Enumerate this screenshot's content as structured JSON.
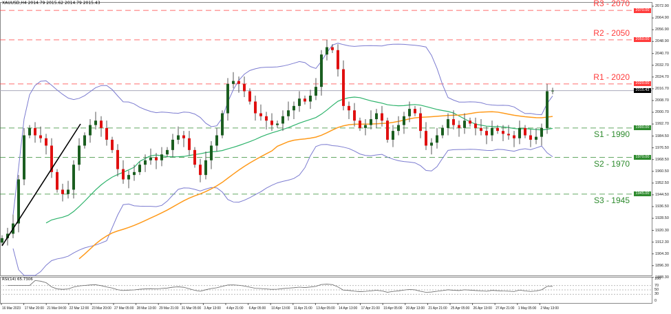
{
  "header": {
    "title": "XAUUSD,H4  2014.79 2015.62 2014.79 2015.43"
  },
  "levels": [
    {
      "label": "R3 - 2070",
      "price": 2070,
      "tag": "2070.00",
      "color": "#ff3b3b"
    },
    {
      "label": "R2 - 2050",
      "price": 2050,
      "tag": "2050.00",
      "color": "#ff3b3b"
    },
    {
      "label": "R1 - 2020",
      "price": 2020,
      "tag": "2020.00",
      "color": "#ff3b3b"
    },
    {
      "label": "S1 - 1990",
      "price": 1990,
      "tag": "1990.00",
      "color": "#2e8b2e"
    },
    {
      "label": "S2 - 1970",
      "price": 1970,
      "tag": "1970.00",
      "color": "#2e8b2e"
    },
    {
      "label": "S3 - 1945",
      "price": 1945,
      "tag": "1945.00",
      "color": "#2e8b2e"
    }
  ],
  "current_price": {
    "value": 2015.43,
    "tag": "2015.43"
  },
  "y_ticks": [
    "2072.90",
    "2064.90",
    "2056.90",
    "2048.90",
    "2040.70",
    "2032.70",
    "2024.70",
    "2016.70",
    "2008.70",
    "2000.70",
    "1992.70",
    "1984.50",
    "1976.50",
    "1968.50",
    "1960.50",
    "1952.50",
    "1944.50",
    "1936.50",
    "1928.50",
    "1920.30",
    "1912.30",
    "1904.30",
    "1896.30",
    "1888.30"
  ],
  "x_ticks": [
    "16 Mar 2023",
    "17 Mar 20:00",
    "21 Mar 04:00",
    "22 Mar 12:00",
    "23 Mar 20:00",
    "27 Mar 05:00",
    "28 Mar 13:00",
    "29 Mar 21:00",
    "31 Mar 05:00",
    "3 Apr 13:00",
    "4 Apr 21:00",
    "6 Apr 05:00",
    "10 Apr 13:00",
    "11 Apr 21:00",
    "13 Apr 05:00",
    "14 Apr 13:00",
    "17 Apr 21:00",
    "19 Apr 05:00",
    "20 Apr 13:00",
    "21 Apr 21:00",
    "25 Apr 05:00",
    "26 Apr 13:00",
    "27 Apr 21:00",
    "1 May 05:00",
    "2 May 13:00"
  ],
  "rsi": {
    "title": "RSI(14) 65.7306",
    "ticks": [
      "100",
      "70",
      "50",
      "30",
      "0"
    ]
  },
  "colors": {
    "bull": "#1b5e20",
    "bear": "#e01010",
    "bands": "#7b7bd0",
    "ma_fast": "#2db36b",
    "ma_slow": "#ff9a1a",
    "trendline": "#000000"
  },
  "chart_data": {
    "type": "candlestick",
    "symbol": "XAUUSD",
    "timeframe": "H4",
    "ylim": [
      1888.3,
      2072.9
    ],
    "closes": [
      1915,
      1918,
      1925,
      1955,
      1985,
      1990,
      1985,
      1983,
      1978,
      1960,
      1948,
      1945,
      1948,
      1965,
      1978,
      1985,
      1992,
      1995,
      1990,
      1982,
      1975,
      1962,
      1955,
      1958,
      1960,
      1965,
      1968,
      1970,
      1968,
      1972,
      1975,
      1982,
      1985,
      1983,
      1975,
      1965,
      1958,
      1968,
      1978,
      1985,
      2000,
      2020,
      2022,
      2020,
      2015,
      2008,
      2000,
      1998,
      1995,
      1992,
      1993,
      1998,
      2002,
      2005,
      2010,
      2008,
      2012,
      2018,
      2040,
      2045,
      2043,
      2030,
      2005,
      2002,
      1995,
      1990,
      1992,
      1996,
      2000,
      1995,
      1982,
      1988,
      1992,
      1998,
      2003,
      2000,
      1988,
      1978,
      1980,
      1985,
      1990,
      1996,
      1992,
      1990,
      1995,
      1993,
      1990,
      1988,
      1985,
      1990,
      1988,
      1986,
      1985,
      1983,
      1990,
      1985,
      1982,
      1984,
      1990,
      2015,
      2015.43
    ]
  }
}
